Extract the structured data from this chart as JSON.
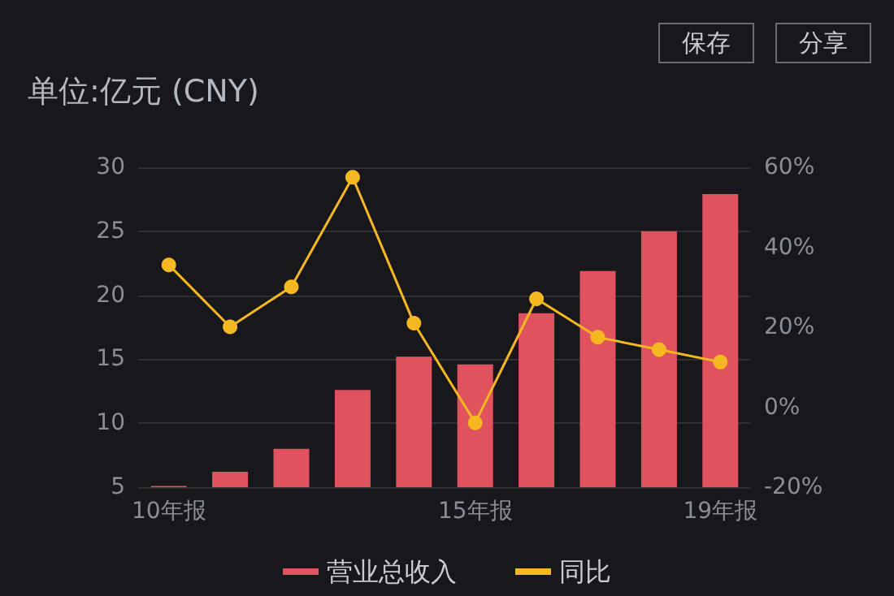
{
  "chart_data": {
    "type": "bar",
    "title": "单位:亿元 (CNY)",
    "annotations": [
      "保存",
      "分享"
    ],
    "categories": [
      "10年报",
      null,
      null,
      null,
      null,
      "15年报",
      null,
      null,
      null,
      "19年报"
    ],
    "series": [
      {
        "name": "营业总收入",
        "color": "#e0525e",
        "values": [
          5.1,
          6.2,
          8.0,
          12.6,
          15.2,
          14.6,
          18.6,
          21.9,
          25.0,
          27.9
        ]
      },
      {
        "name": "同比",
        "type": "line",
        "axis": "y2",
        "color": "#f5b820",
        "values": [
          35.6,
          20.1,
          30.1,
          57.5,
          21.0,
          -3.9,
          27.1,
          17.5,
          14.4,
          11.3
        ]
      }
    ],
    "ylim": [
      5,
      30
    ],
    "yticks": [
      5,
      10,
      15,
      20,
      25,
      30
    ],
    "y2lim": [
      -20,
      60
    ],
    "y2ticks": [
      {
        "value": -20,
        "label": "-20%"
      },
      {
        "value": 0,
        "label": "0%"
      },
      {
        "value": 20,
        "label": "20%"
      },
      {
        "value": 40,
        "label": "40%"
      },
      {
        "value": 60,
        "label": "60%"
      }
    ],
    "grid": "y",
    "legend": "bottom",
    "marker": "circle"
  }
}
